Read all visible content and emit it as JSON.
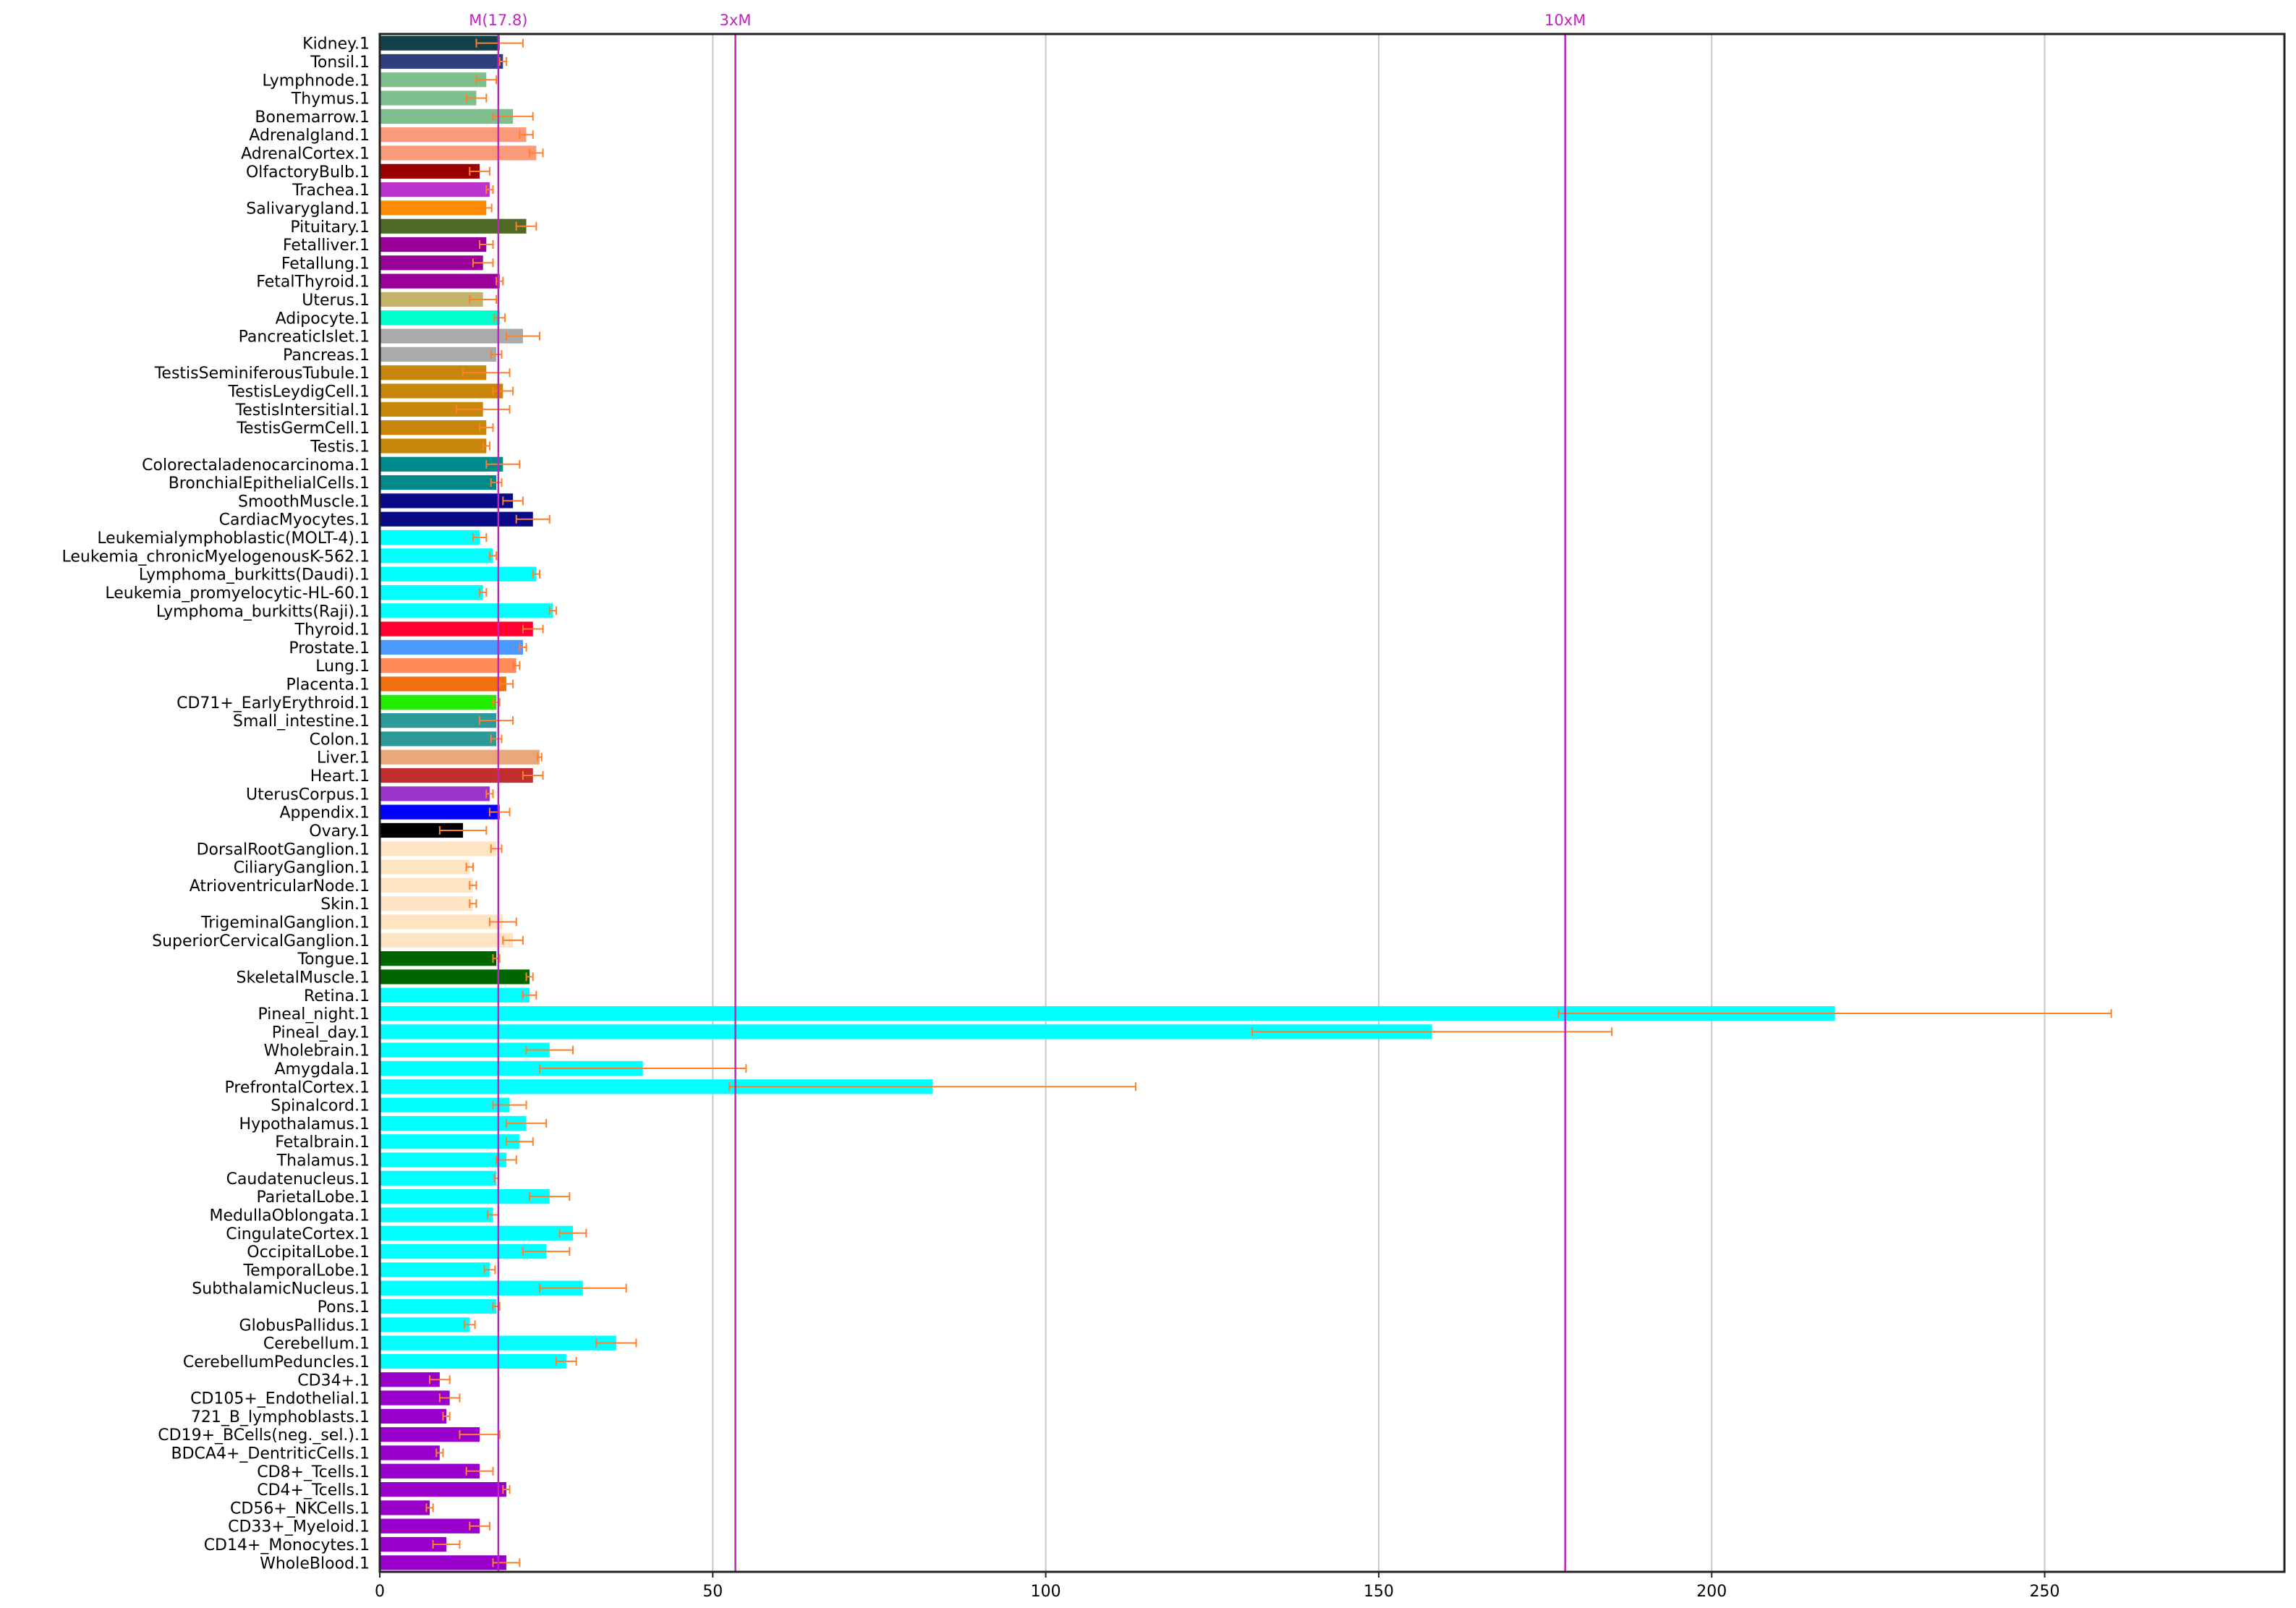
{
  "chart_data": {
    "type": "bar",
    "orientation": "horizontal",
    "title": "",
    "xlabel": "",
    "ylabel": "",
    "xlim": [
      0,
      286
    ],
    "x_ticks": [
      0,
      50,
      100,
      150,
      200,
      250
    ],
    "x_tick_labels": [
      "0",
      "50",
      "100",
      "150",
      "200",
      "250"
    ],
    "grid": "vertical lines at x ticks",
    "error_bar_color": "#ff7f2a",
    "reference_lines": [
      {
        "label": "M(17.8)",
        "value": 17.8,
        "color": "#c023c0"
      },
      {
        "label": "3xM",
        "value": 53.4,
        "color": "#c023c0"
      },
      {
        "label": "10xM",
        "value": 178,
        "color": "#c023c0"
      }
    ],
    "categories": [
      "Kidney.1",
      "Tonsil.1",
      "Lymphnode.1",
      "Thymus.1",
      "Bonemarrow.1",
      "Adrenalgland.1",
      "AdrenalCortex.1",
      "OlfactoryBulb.1",
      "Trachea.1",
      "Salivarygland.1",
      "Pituitary.1",
      "Fetalliver.1",
      "Fetallung.1",
      "FetalThyroid.1",
      "Uterus.1",
      "Adipocyte.1",
      "PancreaticIslet.1",
      "Pancreas.1",
      "TestisSeminiferousTubule.1",
      "TestisLeydigCell.1",
      "TestisIntersitial.1",
      "TestisGermCell.1",
      "Testis.1",
      "Colorectaladenocarcinoma.1",
      "BronchialEpithelialCells.1",
      "SmoothMuscle.1",
      "CardiacMyocytes.1",
      "Leukemialymphoblastic(MOLT-4).1",
      "Leukemia_chronicMyelogenousK-562.1",
      "Lymphoma_burkitts(Daudi).1",
      "Leukemia_promyelocytic-HL-60.1",
      "Lymphoma_burkitts(Raji).1",
      "Thyroid.1",
      "Prostate.1",
      "Lung.1",
      "Placenta.1",
      "CD71+_EarlyErythroid.1",
      "Small_intestine.1",
      "Colon.1",
      "Liver.1",
      "Heart.1",
      "UterusCorpus.1",
      "Appendix.1",
      "Ovary.1",
      "DorsalRootGanglion.1",
      "CiliaryGanglion.1",
      "AtrioventricularNode.1",
      "Skin.1",
      "TrigeminalGanglion.1",
      "SuperiorCervicalGanglion.1",
      "Tongue.1",
      "SkeletalMuscle.1",
      "Retina.1",
      "Pineal_night.1",
      "Pineal_day.1",
      "Wholebrain.1",
      "Amygdala.1",
      "PrefrontalCortex.1",
      "Spinalcord.1",
      "Hypothalamus.1",
      "Fetalbrain.1",
      "Thalamus.1",
      "Caudatenucleus.1",
      "ParietalLobe.1",
      "MedullaOblongata.1",
      "CingulateCortex.1",
      "OccipitalLobe.1",
      "TemporalLobe.1",
      "SubthalamicNucleus.1",
      "Pons.1",
      "GlobusPallidus.1",
      "Cerebellum.1",
      "CerebellumPeduncles.1",
      "CD34+.1",
      "CD105+_Endothelial.1",
      "721_B_lymphoblasts.1",
      "CD19+_BCells(neg._sel.).1",
      "BDCA4+_DentriticCells.1",
      "CD8+_Tcells.1",
      "CD4+_Tcells.1",
      "CD56+_NKCells.1",
      "CD33+_Myeloid.1",
      "CD14+_Monocytes.1",
      "WholeBlood.1"
    ],
    "values": [
      18,
      18.5,
      16,
      14.5,
      20,
      22,
      23.5,
      15,
      16.5,
      16,
      22,
      16,
      15.5,
      18,
      15.5,
      18,
      21.5,
      17.5,
      16,
      18.5,
      15.5,
      16,
      16,
      18.5,
      17.5,
      20,
      23,
      15,
      17,
      23.5,
      15.5,
      26,
      23,
      21.5,
      20.5,
      19,
      17.5,
      17.5,
      17.5,
      24,
      23,
      16.5,
      18,
      12.5,
      17.5,
      13.5,
      14,
      14,
      18.5,
      20,
      17.5,
      22.5,
      22.5,
      218.5,
      158,
      25.5,
      39.5,
      83,
      19.5,
      22,
      21,
      19,
      17.5,
      25.5,
      17,
      29,
      25,
      16.5,
      30.5,
      17.5,
      13.5,
      35.5,
      28,
      9,
      10.5,
      10,
      15,
      9,
      15,
      19,
      7.5,
      15,
      10,
      19
    ],
    "errors": [
      3.5,
      0.5,
      1.5,
      1.5,
      3,
      1,
      1,
      1.5,
      0.5,
      0.8,
      1.5,
      1,
      1.5,
      0.5,
      2,
      0.8,
      2.5,
      0.8,
      3.5,
      1.5,
      4,
      1,
      0.5,
      2.5,
      0.8,
      1.5,
      2.5,
      1,
      0.5,
      0.5,
      0.5,
      0.5,
      1.5,
      0.5,
      0.5,
      1,
      0.5,
      2.5,
      0.8,
      0.3,
      1.5,
      0.5,
      1.5,
      3.5,
      0.8,
      0.5,
      0.5,
      0.5,
      2,
      1.5,
      0.5,
      0.5,
      1,
      41.5,
      27,
      3.5,
      15.5,
      30.5,
      2.5,
      3,
      2,
      1.5,
      0.3,
      3,
      0.8,
      2,
      3.5,
      0.8,
      6.5,
      0.5,
      0.8,
      3,
      1.5,
      1.5,
      1.5,
      0.5,
      3,
      0.5,
      2,
      0.5,
      0.5,
      1.5,
      2,
      2
    ],
    "colors": [
      "#13404a",
      "#2e3f7f",
      "#7ec08d",
      "#7ec08d",
      "#7ec08d",
      "#fb9a7a",
      "#fb9a7a",
      "#990000",
      "#bb33cc",
      "#ff8c00",
      "#4e6b25",
      "#990099",
      "#990099",
      "#990099",
      "#c2b36a",
      "#00ffcc",
      "#aaaaaa",
      "#aaaaaa",
      "#c8860a",
      "#c8860a",
      "#c8860a",
      "#c8860a",
      "#c8860a",
      "#008b8b",
      "#008b8b",
      "#0a0a88",
      "#0a0a88",
      "#00ffff",
      "#00ffff",
      "#00ffff",
      "#00ffff",
      "#00ffff",
      "#ff0033",
      "#4c99ff",
      "#ff8c5a",
      "#f07010",
      "#22ee00",
      "#2d9a9a",
      "#2d9a9a",
      "#e8a87c",
      "#c03030",
      "#9933cc",
      "#0000ff",
      "#000000",
      "#ffe4c4",
      "#ffe4c4",
      "#ffe4c4",
      "#ffe4c4",
      "#ffe4c4",
      "#ffe4c4",
      "#006600",
      "#006600",
      "#00ffff",
      "#00ffff",
      "#00ffff",
      "#00ffff",
      "#00ffff",
      "#00ffff",
      "#00ffff",
      "#00ffff",
      "#00ffff",
      "#00ffff",
      "#00ffff",
      "#00ffff",
      "#00ffff",
      "#00ffff",
      "#00ffff",
      "#00ffff",
      "#00ffff",
      "#00ffff",
      "#00ffff",
      "#00ffff",
      "#00ffff",
      "#9900cc",
      "#9900cc",
      "#9900cc",
      "#9900cc",
      "#9900cc",
      "#9900cc",
      "#9900cc",
      "#9900cc",
      "#9900cc",
      "#9900cc",
      "#9900cc"
    ]
  }
}
